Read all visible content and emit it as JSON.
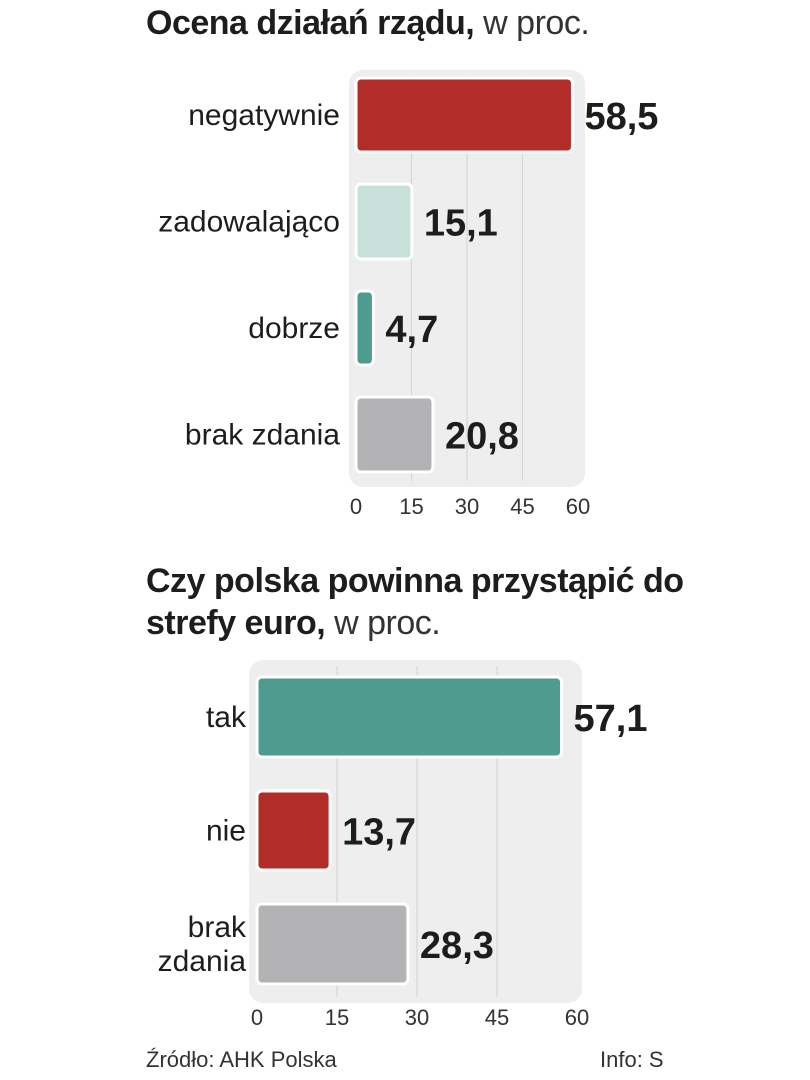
{
  "chart_data": [
    {
      "type": "bar",
      "orientation": "horizontal",
      "title_bold": "Ocena działań rządu,",
      "title_light": "w proc.",
      "categories": [
        "negatywnie",
        "zadowalająco",
        "dobrze",
        "brak zdania"
      ],
      "values": [
        58.5,
        15.1,
        4.7,
        20.8
      ],
      "value_labels": [
        "58,5",
        "15,1",
        "4,7",
        "20,8"
      ],
      "colors": [
        "#b22d27",
        "#c8e0da",
        "#4e9b8f",
        "#b3b3b5"
      ],
      "xlim": [
        0,
        60
      ],
      "xticks": [
        0,
        15,
        30,
        45,
        60
      ],
      "xtick_labels": [
        "0",
        "15",
        "30",
        "45",
        "60"
      ],
      "grid": true
    },
    {
      "type": "bar",
      "orientation": "horizontal",
      "title_bold": "Czy polska powinna przystąpić do strefy euro,",
      "title_light": "w proc.",
      "categories": [
        [
          "tak"
        ],
        [
          "nie"
        ],
        [
          "brak",
          "zdania"
        ]
      ],
      "values": [
        57.1,
        13.7,
        28.3
      ],
      "value_labels": [
        "57,1",
        "13,7",
        "28,3"
      ],
      "colors": [
        "#4e9b8f",
        "#b22d27",
        "#b3b3b5"
      ],
      "xlim": [
        0,
        60
      ],
      "xticks": [
        0,
        15,
        30,
        45,
        60
      ],
      "xtick_labels": [
        "0",
        "15",
        "30",
        "45",
        "60"
      ],
      "grid": true
    }
  ],
  "footer": {
    "source": "Źródło: AHK Polska",
    "info": "Info: S"
  }
}
